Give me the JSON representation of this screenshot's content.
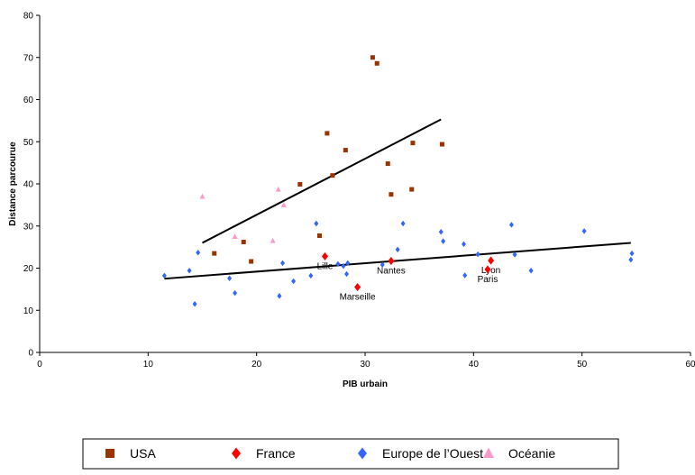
{
  "chart_data": {
    "type": "scatter",
    "xlabel": "PIB urbain",
    "ylabel": "Distance parcourue",
    "xlim": [
      0,
      60
    ],
    "ylim": [
      0,
      80
    ],
    "xticks": [
      0,
      10,
      20,
      30,
      40,
      50,
      60
    ],
    "yticks": [
      0,
      10,
      20,
      30,
      40,
      50,
      60,
      70,
      80
    ],
    "series": [
      {
        "name": "USA",
        "color": "#993300",
        "marker": "square",
        "x": [
          16.1,
          18.8,
          19.5,
          24,
          25.8,
          26.5,
          27,
          28.2,
          30.7,
          31.1,
          32.1,
          32.4,
          34.4,
          34.3,
          37.1
        ],
        "values": [
          23.5,
          26.2,
          21.6,
          39.9,
          27.7,
          52,
          42,
          48,
          70,
          68.6,
          44.8,
          37.5,
          49.7,
          38.7,
          49.4
        ]
      },
      {
        "name": "France",
        "color": "#ff0000",
        "marker": "diamond",
        "x": [
          26.3,
          32.4,
          29.3,
          41.6,
          41.3
        ],
        "values": [
          22.8,
          21.7,
          15.5,
          21.8,
          19.7
        ],
        "labels": [
          "Lille",
          "Nantes",
          "Marseille",
          "Lyon",
          "Paris"
        ]
      },
      {
        "name": "Europe de l’Ouest",
        "color": "#3366ff",
        "marker": "diamond",
        "x": [
          11.5,
          13.8,
          14.3,
          14.6,
          17.5,
          18,
          22.1,
          22.4,
          23.4,
          25,
          25.5,
          27.5,
          28,
          28.3,
          28.4,
          31.6,
          33,
          33.5,
          37,
          37.2,
          39.1,
          39.2,
          40.4,
          43.5,
          43.8,
          45.3,
          50.2,
          54.5,
          54.6
        ],
        "values": [
          18.2,
          19.4,
          11.5,
          23.7,
          17.6,
          14.1,
          13.4,
          21.2,
          16.9,
          18.2,
          30.6,
          21,
          20.5,
          18.6,
          21.2,
          20.8,
          24.4,
          30.6,
          28.6,
          26.4,
          25.7,
          18.3,
          23.3,
          30.3,
          23.2,
          19.4,
          28.8,
          22,
          23.5
        ]
      },
      {
        "name": "Océanie",
        "color": "#ff99cc",
        "marker": "triangle",
        "x": [
          15,
          18,
          21.5,
          22,
          22.5
        ],
        "values": [
          37,
          27.5,
          26.5,
          38.7,
          35
        ]
      }
    ],
    "trendlines": [
      {
        "color": "#000000",
        "x": [
          15,
          37
        ],
        "values": [
          26,
          55.3
        ]
      },
      {
        "color": "#000000",
        "x": [
          11.5,
          54.5
        ],
        "values": [
          17.5,
          26
        ]
      }
    ]
  }
}
